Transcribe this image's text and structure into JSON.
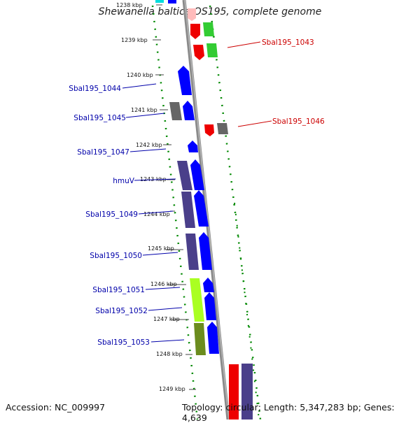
{
  "title": "Shewanella baltica OS195, complete genome",
  "accession_label": "Accession: NC_009997",
  "topology_label": "Topology: circular; Length: 5,347,283 bp; Genes: 4,639",
  "colors": {
    "forward_cds": "#0000ff",
    "reverse_cds": "#ff0000",
    "forward_label": "#0000aa",
    "reverse_label": "#cc0000",
    "axis": "#888888",
    "gc_dots": "#008800",
    "cog_dark_blue": "#4a3f8a",
    "cog_gray": "#666666",
    "cog_green": "#33cc33",
    "cog_lime": "#aaff22",
    "cog_olive": "#6b8c1e"
  },
  "tick_labels": [
    "1238 kbp",
    "1239 kbp",
    "1240 kbp",
    "1241 kbp",
    "1242 kbp",
    "1243 kbp",
    "1244 kbp",
    "1245 kbp",
    "1246 kbp",
    "1247 kbp",
    "1248 kbp",
    "1249 kbp"
  ],
  "gene_labels_left": [
    "Sbal195_1044",
    "Sbal195_1045",
    "Sbal195_1047",
    "hmuV",
    "Sbal195_1049",
    "Sbal195_1050",
    "Sbal195_1051",
    "Sbal195_1052",
    "Sbal195_1053"
  ],
  "gene_labels_right": [
    "Sbal195_1043",
    "Sbal195_1046"
  ]
}
